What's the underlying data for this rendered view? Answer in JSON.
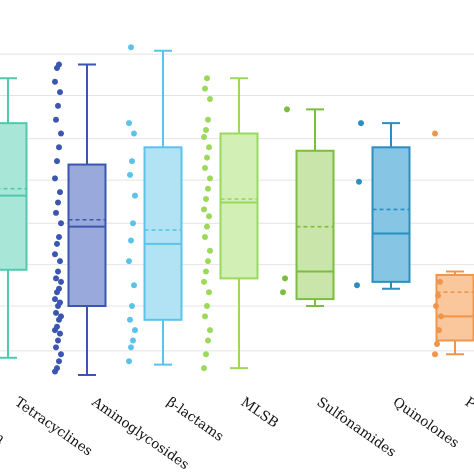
{
  "chart_data": {
    "type": "box",
    "title": "",
    "xlabel": "",
    "ylabel": "",
    "grid": true,
    "categories": [
      "Tetracyclines",
      "Aminoglycosides",
      "β-lactams",
      "MLSB",
      "Sulfonamides",
      "Quinolones",
      "P"
    ],
    "left_clipped_label": "cm",
    "y_domain": [
      0,
      1
    ],
    "gridlines": [
      0.07,
      0.2,
      0.32,
      0.44,
      0.565,
      0.685,
      0.81,
      0.93
    ],
    "boxes": [
      {
        "name": "left-partial",
        "color": "#4fc9b0",
        "fill": "#a8e6d8",
        "whisker_low": 0.05,
        "q1": 0.305,
        "median": 0.52,
        "mean": 0.54,
        "q3": 0.73,
        "whisker_high": 0.86,
        "points": []
      },
      {
        "name": "Tetracyclines",
        "color": "#3a56b0",
        "fill": "#9aa9dc",
        "whisker_low": 0.0,
        "q1": 0.2,
        "median": 0.43,
        "mean": 0.45,
        "q3": 0.61,
        "whisker_high": 0.9,
        "points": [
          0.01,
          0.02,
          0.04,
          0.06,
          0.08,
          0.1,
          0.12,
          0.13,
          0.14,
          0.16,
          0.17,
          0.18,
          0.2,
          0.21,
          0.22,
          0.24,
          0.25,
          0.27,
          0.28,
          0.3,
          0.33,
          0.35,
          0.38,
          0.4,
          0.44,
          0.47,
          0.5,
          0.53,
          0.57,
          0.62,
          0.66,
          0.7,
          0.74,
          0.78,
          0.82,
          0.85,
          0.89,
          0.9
        ]
      },
      {
        "name": "Aminoglycosides",
        "color": "#5bc3ea",
        "fill": "#b2e3f5",
        "whisker_low": 0.03,
        "q1": 0.16,
        "median": 0.38,
        "mean": 0.42,
        "q3": 0.66,
        "whisker_high": 0.94,
        "points": [
          0.04,
          0.08,
          0.1,
          0.13,
          0.16,
          0.2,
          0.26,
          0.33,
          0.39,
          0.44,
          0.52,
          0.58,
          0.62,
          0.7,
          0.73,
          0.95
        ]
      },
      {
        "name": "β-lactams",
        "color": "#9ad95a",
        "fill": "#d2efb6",
        "whisker_low": 0.02,
        "q1": 0.28,
        "median": 0.5,
        "mean": 0.51,
        "q3": 0.7,
        "whisker_high": 0.86,
        "points": [
          0.02,
          0.06,
          0.1,
          0.13,
          0.17,
          0.2,
          0.24,
          0.27,
          0.3,
          0.33,
          0.36,
          0.4,
          0.43,
          0.46,
          0.48,
          0.51,
          0.54,
          0.57,
          0.6,
          0.63,
          0.66,
          0.69,
          0.71,
          0.74,
          0.8,
          0.83,
          0.86
        ]
      },
      {
        "name": "MLSB",
        "color": "#7bbd3f",
        "fill": "#c9e5a9",
        "whisker_low": 0.2,
        "q1": 0.22,
        "median": 0.3,
        "mean": 0.43,
        "q3": 0.65,
        "whisker_high": 0.77,
        "points": [
          0.24,
          0.28,
          0.77
        ]
      },
      {
        "name": "Sulfonamides",
        "color": "#2a8ec0",
        "fill": "#86c6e4",
        "whisker_low": 0.25,
        "q1": 0.27,
        "median": 0.41,
        "mean": 0.48,
        "q3": 0.66,
        "whisker_high": 0.73,
        "points": [
          0.26,
          0.56,
          0.73
        ]
      },
      {
        "name": "Quinolones",
        "color": "#f0954a",
        "fill": "#fac79c",
        "whisker_low": 0.06,
        "q1": 0.1,
        "median": 0.17,
        "mean": 0.24,
        "q3": 0.29,
        "whisker_high": 0.3,
        "points": [
          0.06,
          0.09,
          0.13,
          0.17,
          0.2,
          0.23,
          0.27,
          0.7
        ]
      }
    ]
  }
}
